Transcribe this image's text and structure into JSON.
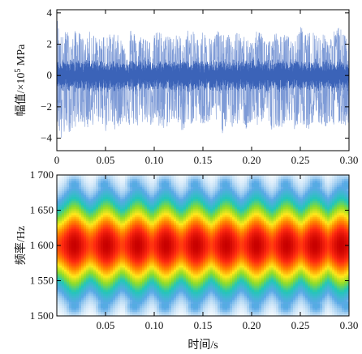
{
  "chart_data": [
    {
      "type": "line",
      "panel": "time-domain signal",
      "xlabel": "",
      "ylabel": "幅值/×10⁵ MPa",
      "ylabel_parts": {
        "pre": "幅值/×10",
        "sup": "5",
        "post": " MPa"
      },
      "xlim": [
        0,
        0.3
      ],
      "ylim": [
        -4.8,
        4.2
      ],
      "x_ticks": [
        "0",
        "0.05",
        "0.10",
        "0.15",
        "0.20",
        "0.25",
        "0.30"
      ],
      "x_tick_values": [
        0,
        0.05,
        0.1,
        0.15,
        0.2,
        0.25,
        0.3
      ],
      "y_ticks": [
        "4",
        "2",
        "0",
        "−2",
        "−4"
      ],
      "y_tick_values": [
        4,
        2,
        0,
        -2,
        -4
      ],
      "line_color": "#3b63b8",
      "series": [
        {
          "x": [
            0.0,
            0.005,
            0.01,
            0.015,
            0.02,
            0.025,
            0.03,
            0.035,
            0.04,
            0.045,
            0.05,
            0.055,
            0.06,
            0.065,
            0.07,
            0.075,
            0.08,
            0.085,
            0.09,
            0.095,
            0.1,
            0.105,
            0.11,
            0.115,
            0.12,
            0.125,
            0.13,
            0.135,
            0.14,
            0.145,
            0.15,
            0.155,
            0.16,
            0.165,
            0.17,
            0.175,
            0.18,
            0.185,
            0.19,
            0.195,
            0.2,
            0.205,
            0.21,
            0.215,
            0.22,
            0.225,
            0.23,
            0.235,
            0.24,
            0.245,
            0.25,
            0.255,
            0.26,
            0.265,
            0.27,
            0.275,
            0.28,
            0.285,
            0.29,
            0.295,
            0.3
          ],
          "upper": [
            3.9,
            2.4,
            3.0,
            2.2,
            3.1,
            2.6,
            2.2,
            3.0,
            2.5,
            2.3,
            2.9,
            2.6,
            2.8,
            2.4,
            2.1,
            3.2,
            2.7,
            2.5,
            2.8,
            2.2,
            2.6,
            3.0,
            2.3,
            2.9,
            2.5,
            2.7,
            2.2,
            3.0,
            2.8,
            2.4,
            2.9,
            2.6,
            2.3,
            3.1,
            2.5,
            2.8,
            2.2,
            2.9,
            2.4,
            2.7,
            2.1,
            2.8,
            3.0,
            2.6,
            2.2,
            2.9,
            2.5,
            2.7,
            2.4,
            2.2,
            3.3,
            2.6,
            2.8,
            3.0,
            2.5,
            2.7,
            2.3,
            2.9,
            3.2,
            2.6,
            2.4
          ],
          "lower": [
            -3.0,
            -4.4,
            -3.4,
            -3.8,
            -3.2,
            -2.9,
            -3.6,
            -3.1,
            -3.3,
            -2.8,
            -3.7,
            -3.0,
            -3.5,
            -3.2,
            -2.9,
            -3.4,
            -3.1,
            -3.6,
            -2.8,
            -3.3,
            -3.0,
            -3.5,
            -3.7,
            -3.1,
            -2.9,
            -3.4,
            -3.6,
            -3.0,
            -3.2,
            -2.8,
            -3.5,
            -3.1,
            -3.3,
            -2.9,
            -3.7,
            -3.0,
            -3.4,
            -3.2,
            -2.9,
            -3.6,
            -3.1,
            -3.3,
            -3.0,
            -2.8,
            -3.5,
            -3.2,
            -3.4,
            -2.9,
            -3.1,
            -3.6,
            -3.0,
            -3.3,
            -3.5,
            -2.9,
            -3.2,
            -3.4,
            -3.0,
            -3.6,
            -3.1,
            -3.3,
            -3.0
          ],
          "core_amplitude": 1.1
        }
      ]
    },
    {
      "type": "heatmap",
      "panel": "time-frequency spectrum",
      "xlabel": "时间/s",
      "ylabel": "频率/Hz",
      "xlim": [
        0,
        0.3
      ],
      "ylim": [
        1500,
        1700
      ],
      "x_ticks": [
        "0.05",
        "0.10",
        "0.15",
        "0.20",
        "0.25",
        "0.30"
      ],
      "x_tick_values": [
        0.05,
        0.1,
        0.15,
        0.2,
        0.25,
        0.3
      ],
      "y_ticks": [
        "1 700",
        "1 650",
        "1 600",
        "1 550",
        "1 500"
      ],
      "y_tick_values": [
        1700,
        1650,
        1600,
        1550,
        1500
      ],
      "center_frequency": 1600,
      "peak_times": [
        0.018,
        0.051,
        0.083,
        0.112,
        0.143,
        0.174,
        0.205,
        0.236,
        0.265,
        0.292
      ],
      "colormap": [
        "#ffffff",
        "#5aa9e6",
        "#22c7b8",
        "#8fdc2a",
        "#ffe81a",
        "#ff8a00",
        "#ff2a10",
        "#c80000"
      ]
    }
  ]
}
